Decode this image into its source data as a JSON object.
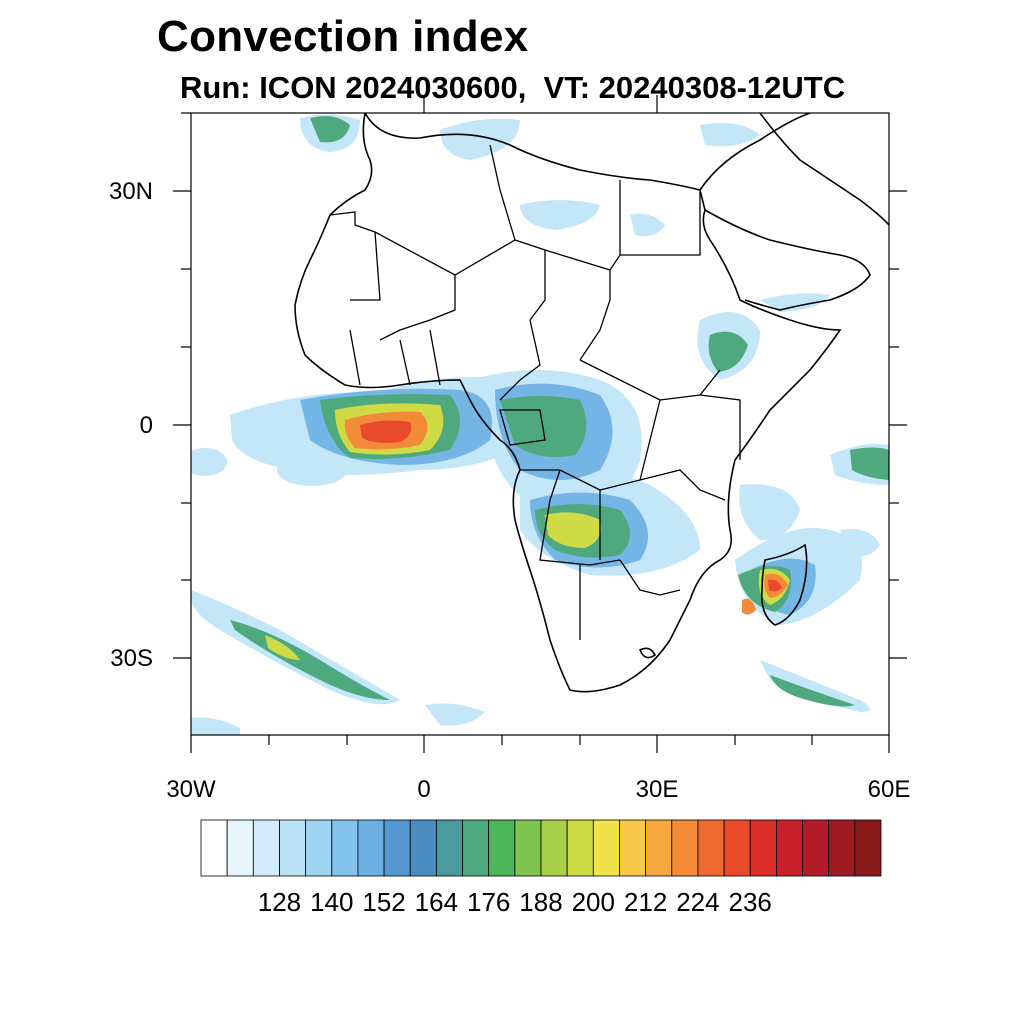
{
  "title": "Convection index",
  "subtitle": "Run: ICON 2024030600,  VT: 20240308-12UTC",
  "axes": {
    "y_labels": [
      "30N",
      "0",
      "30S"
    ],
    "x_labels": [
      "30W",
      "0",
      "30E",
      "60E"
    ]
  },
  "colorbar": {
    "colors": [
      "#ffffff",
      "#e8f5fc",
      "#d2ecfa",
      "#b9e2f7",
      "#9dd5f3",
      "#83c3ec",
      "#6cb0e3",
      "#5497d2",
      "#4a8cc0",
      "#4a9aa0",
      "#4fa97e",
      "#4db55a",
      "#7cc44c",
      "#a8cf4a",
      "#cfdb45",
      "#f0e34a",
      "#f7c84a",
      "#f6a840",
      "#f28a38",
      "#ee6a30",
      "#e84a2b",
      "#dc2f2a",
      "#c8202a",
      "#b31b28",
      "#9e1a22",
      "#8a1a1a"
    ],
    "labels": [
      "128",
      "140",
      "152",
      "164",
      "176",
      "188",
      "200",
      "212",
      "224",
      "236"
    ]
  }
}
